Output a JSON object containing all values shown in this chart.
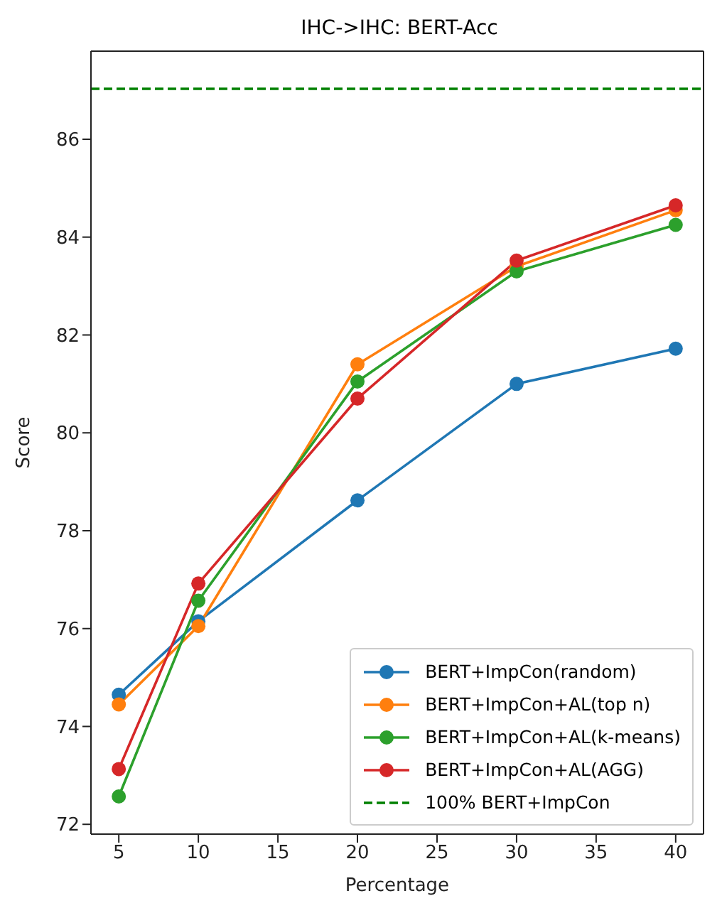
{
  "chart_data": {
    "type": "line",
    "title": "IHC->IHC: BERT-Acc",
    "xlabel": "Percentage",
    "ylabel": "Score",
    "x": [
      5,
      10,
      20,
      30,
      40
    ],
    "series": [
      {
        "name": "BERT+ImpCon(random)",
        "color": "#1f77b4",
        "values": [
          74.65,
          76.15,
          78.62,
          81.0,
          81.72
        ]
      },
      {
        "name": "BERT+ImpCon+AL(top n)",
        "color": "#ff7f0e",
        "values": [
          74.45,
          76.05,
          81.4,
          83.4,
          84.55
        ]
      },
      {
        "name": "BERT+ImpCon+AL(k-means)",
        "color": "#2ca02c",
        "values": [
          72.57,
          76.57,
          81.05,
          83.3,
          84.25
        ]
      },
      {
        "name": "BERT+ImpCon+AL(AGG)",
        "color": "#d62728",
        "values": [
          73.13,
          76.92,
          80.7,
          83.52,
          84.65
        ]
      }
    ],
    "ref_lines": [
      {
        "axis": "y",
        "value": 87.03,
        "label": "100% BERT+ImpCon",
        "color": "#008000",
        "line_style": "dashed"
      }
    ],
    "xlim": [
      3.25,
      41.75
    ],
    "xticks": [
      5,
      10,
      15,
      20,
      25,
      30,
      35,
      40
    ],
    "ylim": [
      71.8,
      87.8
    ],
    "yticks": [
      72,
      74,
      76,
      78,
      80,
      82,
      84,
      86
    ],
    "legend": "bottom right",
    "marker": "circle",
    "line_style": "solid"
  }
}
